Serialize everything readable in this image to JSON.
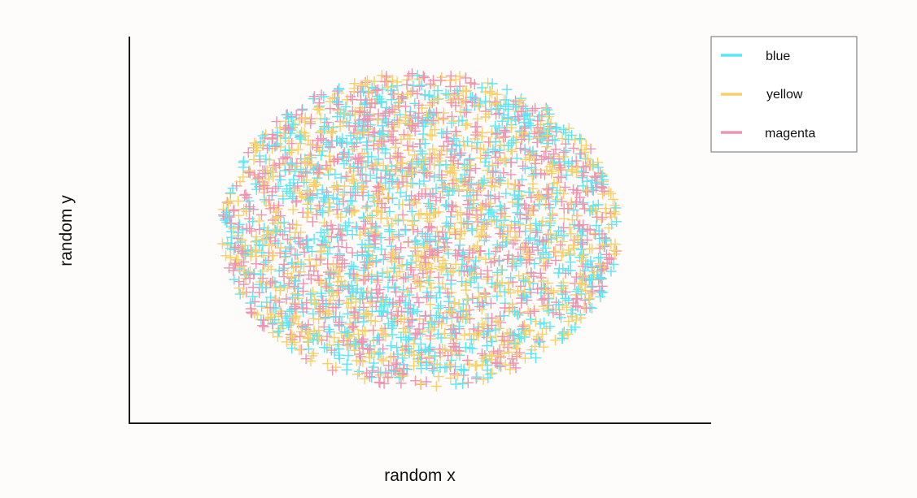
{
  "chart_data": {
    "type": "scatter",
    "title": "",
    "xlabel": "random x",
    "ylabel": "random y",
    "marker": "plus",
    "grid": false,
    "axes_visible": [
      "left",
      "bottom"
    ],
    "ticks_visible": false,
    "legend": {
      "placement": "top-right",
      "entries": [
        "blue",
        "yellow",
        "magenta"
      ]
    },
    "distribution": {
      "shape": "uniform-ellipse",
      "xlim": [
        -1.2,
        1.2
      ],
      "ylim": [
        -1.2,
        1.2
      ],
      "x_radius": 0.82,
      "y_radius": 0.98
    },
    "series": [
      {
        "name": "blue",
        "color": "#5ce6f5",
        "count": 1000
      },
      {
        "name": "yellow",
        "color": "#f8d06a",
        "count": 1000
      },
      {
        "name": "magenta",
        "color": "#ee93b0",
        "count": 1000
      }
    ]
  }
}
